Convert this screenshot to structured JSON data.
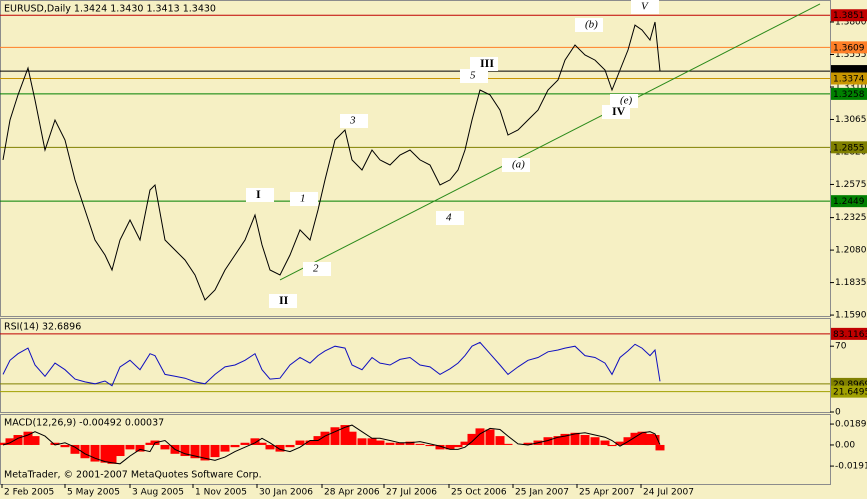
{
  "chart_data": [
    {
      "type": "line",
      "title": "EURUSD,Daily  1.3424 1.3430 1.3413 1.3430",
      "x": [
        3,
        10,
        18,
        28,
        35,
        45,
        55,
        65,
        75,
        85,
        95,
        105,
        112,
        120,
        130,
        140,
        150,
        155,
        165,
        175,
        185,
        195,
        205,
        215,
        225,
        235,
        245,
        255,
        262,
        270,
        280,
        290,
        300,
        310,
        318,
        325,
        335,
        345,
        352,
        362,
        372,
        380,
        390,
        400,
        410,
        420,
        430,
        440,
        450,
        458,
        465,
        472,
        480,
        490,
        500,
        508,
        518,
        528,
        538,
        548,
        558,
        565,
        575,
        585,
        595,
        605,
        612,
        620,
        628,
        635,
        642,
        650,
        655,
        660
      ],
      "values": [
        1.276,
        1.3061,
        1.325,
        1.3453,
        1.3212,
        1.2835,
        1.3061,
        1.291,
        1.2609,
        1.2382,
        1.2156,
        1.2043,
        1.193,
        1.2156,
        1.2307,
        1.2156,
        1.2533,
        1.2571,
        1.2156,
        1.2081,
        1.2005,
        1.1892,
        1.1704,
        1.1779,
        1.193,
        1.2043,
        1.2156,
        1.2345,
        1.2119,
        1.193,
        1.1892,
        1.2043,
        1.2232,
        1.2156,
        1.2382,
        1.2609,
        1.291,
        1.2986,
        1.276,
        1.2684,
        1.2835,
        1.276,
        1.2722,
        1.2797,
        1.2835,
        1.276,
        1.2722,
        1.2571,
        1.2609,
        1.2684,
        1.2835,
        1.3061,
        1.3287,
        1.325,
        1.3136,
        1.2948,
        1.2986,
        1.3061,
        1.3136,
        1.3287,
        1.3363,
        1.3513,
        1.3627,
        1.3551,
        1.3513,
        1.3438,
        1.3287,
        1.3438,
        1.3589,
        1.3777,
        1.374,
        1.3664,
        1.38,
        1.343
      ],
      "color": "#000000",
      "xlim": [
        0,
        830
      ],
      "xticks": [
        {
          "value": 2,
          "label": "2 Feb 2005"
        },
        {
          "value": 65,
          "label": "5 May 2005"
        },
        {
          "value": 130,
          "label": "3 Aug 2005"
        },
        {
          "value": 193,
          "label": "1 Nov 2005"
        },
        {
          "value": 257,
          "label": "30 Jan 2006"
        },
        {
          "value": 322,
          "label": "28 Apr 2006"
        },
        {
          "value": 384,
          "label": "27 Jul 2006"
        },
        {
          "value": 449,
          "label": "25 Oct 2006"
        },
        {
          "value": 513,
          "label": "25 Jan 2007"
        },
        {
          "value": 577,
          "label": "25 Apr 2007"
        },
        {
          "value": 641,
          "label": "24 Jul 2007"
        }
      ],
      "ylim": [
        1.1583,
        1.3966
      ],
      "yticks": [
        {
          "value": 1.38,
          "label": "1.3800"
        },
        {
          "value": 1.3555,
          "label": "1.3555"
        },
        {
          "value": 1.331,
          "label": "1.3310"
        },
        {
          "value": 1.3065,
          "label": "1.3065"
        },
        {
          "value": 1.282,
          "label": "1.2820"
        },
        {
          "value": 1.2575,
          "label": "1.2575"
        },
        {
          "value": 1.2325,
          "label": "1.2325"
        },
        {
          "value": 1.208,
          "label": "1.2080"
        },
        {
          "value": 1.1835,
          "label": "1.1835"
        },
        {
          "value": 1.159,
          "label": "1.1590"
        }
      ],
      "grid": false,
      "levels": [
        {
          "value": 1.3851,
          "color": "#c00000"
        },
        {
          "value": 1.3609,
          "color": "#ff7f27"
        },
        {
          "value": 1.343,
          "label": "1.3430",
          "color": "#000000"
        },
        {
          "value": 1.3374,
          "color": "#c89600"
        },
        {
          "value": 1.3258,
          "color": "#008000"
        },
        {
          "value": 1.2855,
          "color": "#808000"
        },
        {
          "value": 1.2449,
          "color": "#008000"
        }
      ],
      "trendline": {
        "x": [
          280,
          820
        ],
        "y": [
          1.1855,
          1.3936
        ],
        "color": "#2a8a1a"
      },
      "annotations": [
        {
          "text": "V",
          "color": "#c00000"
        },
        {
          "text": "(b)",
          "color": "#9a0a6a"
        },
        {
          "text": "III",
          "color": "#c00000"
        },
        {
          "text": "5",
          "color": "#c00000"
        },
        {
          "text": "(e)",
          "color": "#9a0a6a"
        },
        {
          "text": "IV",
          "color": "#c00000"
        },
        {
          "text": "3",
          "color": "#c00000"
        },
        {
          "text": "(a)",
          "color": "#9a0a6a"
        },
        {
          "text": "I",
          "color": "#c00000"
        },
        {
          "text": "1",
          "color": "#c00000"
        },
        {
          "text": "4",
          "color": "#c00000"
        },
        {
          "text": "2",
          "color": "#c00000"
        },
        {
          "text": "II",
          "color": "#c00000"
        }
      ]
    },
    {
      "type": "line",
      "title": "RSI(14) 32.6896",
      "values": [
        40,
        55,
        62,
        68,
        50,
        38,
        52,
        45,
        35,
        32,
        30,
        33,
        28,
        48,
        55,
        45,
        62,
        60,
        40,
        38,
        36,
        32,
        30,
        40,
        48,
        50,
        55,
        62,
        45,
        35,
        36,
        50,
        58,
        52,
        60,
        65,
        70,
        68,
        50,
        45,
        58,
        52,
        50,
        56,
        58,
        50,
        48,
        40,
        46,
        52,
        60,
        70,
        74,
        62,
        50,
        40,
        48,
        55,
        58,
        64,
        66,
        68,
        70,
        60,
        58,
        52,
        40,
        58,
        65,
        72,
        68,
        60,
        66,
        32.6896
      ],
      "color": "#1010c0",
      "ylim": [
        0,
        100
      ],
      "yticks": [
        70,
        0
      ],
      "levels": [
        {
          "value": 83.1163,
          "color": "#c00000"
        },
        {
          "value": 29.8969,
          "color": "#808000"
        },
        {
          "value": 21.6495,
          "color": "#a0a000"
        }
      ]
    },
    {
      "type": "bar",
      "title": "MACD(12,26,9) -0.00492 0.00037",
      "series": [
        {
          "kind": "bar",
          "color": "#ff0000",
          "values": [
            0.002,
            0.006,
            0.009,
            0.012,
            0.008,
            0.0,
            0.002,
            -0.002,
            -0.008,
            -0.012,
            -0.015,
            -0.016,
            -0.017,
            -0.01,
            -0.004,
            -0.006,
            0.002,
            0.004,
            -0.004,
            -0.008,
            -0.01,
            -0.012,
            -0.014,
            -0.011,
            -0.006,
            -0.002,
            0.002,
            0.006,
            0.002,
            -0.004,
            -0.006,
            -0.002,
            0.004,
            0.004,
            0.008,
            0.012,
            0.016,
            0.018,
            0.012,
            0.006,
            0.006,
            0.004,
            0.002,
            0.002,
            0.003,
            0.001,
            -0.001,
            -0.004,
            -0.004,
            -0.002,
            0.003,
            0.01,
            0.015,
            0.014,
            0.008,
            0.001,
            0.0,
            0.002,
            0.004,
            0.007,
            0.008,
            0.01,
            0.011,
            0.009,
            0.007,
            0.004,
            -0.001,
            0.003,
            0.007,
            0.011,
            0.012,
            0.01,
            0.009,
            -0.00492
          ]
        },
        {
          "kind": "line",
          "color": "#000000",
          "values": [
            0.0,
            0.002,
            0.006,
            0.009,
            0.012,
            0.008,
            0.0,
            0.002,
            -0.002,
            -0.008,
            -0.012,
            -0.015,
            -0.016,
            -0.017,
            -0.01,
            -0.004,
            -0.006,
            0.002,
            0.004,
            -0.004,
            -0.008,
            -0.01,
            -0.012,
            -0.014,
            -0.011,
            -0.006,
            -0.002,
            0.002,
            0.006,
            0.002,
            -0.004,
            -0.006,
            -0.002,
            0.004,
            0.004,
            0.008,
            0.012,
            0.016,
            0.018,
            0.012,
            0.006,
            0.006,
            0.004,
            0.002,
            0.002,
            0.003,
            0.001,
            -0.001,
            -0.004,
            -0.004,
            -0.002,
            0.003,
            0.01,
            0.015,
            0.014,
            0.008,
            0.001,
            0.0,
            0.002,
            0.004,
            0.007,
            0.008,
            0.01,
            0.011,
            0.009,
            0.007,
            0.004,
            -0.001,
            0.003,
            0.007,
            0.011,
            0.012,
            0.01,
            0.00037
          ]
        }
      ],
      "ylim": [
        -0.0353,
        0.028
      ],
      "yticks": [
        0.0189,
        {
          "value": 0,
          "label": "0.00"
        },
        -0.0191
      ],
      "note": "MetaTrader, © 2001-2007 MetaQuotes Software Corp."
    }
  ]
}
